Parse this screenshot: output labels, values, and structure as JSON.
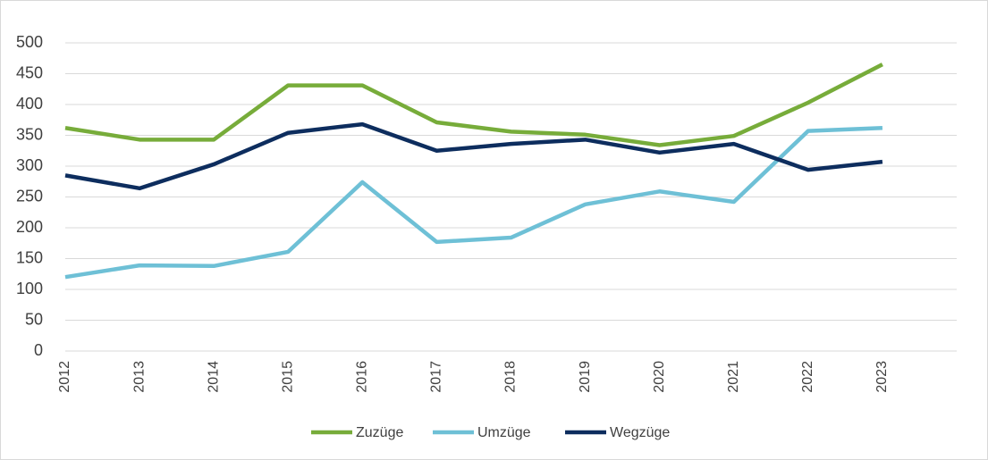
{
  "chart_data": {
    "type": "line",
    "categories": [
      "2012",
      "2013",
      "2014",
      "2015",
      "2016",
      "2017",
      "2018",
      "2019",
      "2020",
      "2021",
      "2022",
      "2023"
    ],
    "series": [
      {
        "name": "Zuzüge",
        "color": "#77ac3a",
        "values": [
          362,
          343,
          343,
          431,
          431,
          371,
          356,
          351,
          334,
          349,
          403,
          465
        ]
      },
      {
        "name": "Umzüge",
        "color": "#6ec0d6",
        "values": [
          120,
          139,
          138,
          161,
          274,
          177,
          184,
          238,
          259,
          242,
          357,
          362
        ]
      },
      {
        "name": "Wegzüge",
        "color": "#0d2d5e",
        "values": [
          285,
          264,
          303,
          354,
          368,
          325,
          336,
          343,
          322,
          336,
          294,
          307
        ]
      }
    ],
    "ylim": [
      0,
      500
    ],
    "yticks": [
      0,
      50,
      100,
      150,
      200,
      250,
      300,
      350,
      400,
      450,
      500
    ],
    "grid": true,
    "legend": "bottom"
  }
}
